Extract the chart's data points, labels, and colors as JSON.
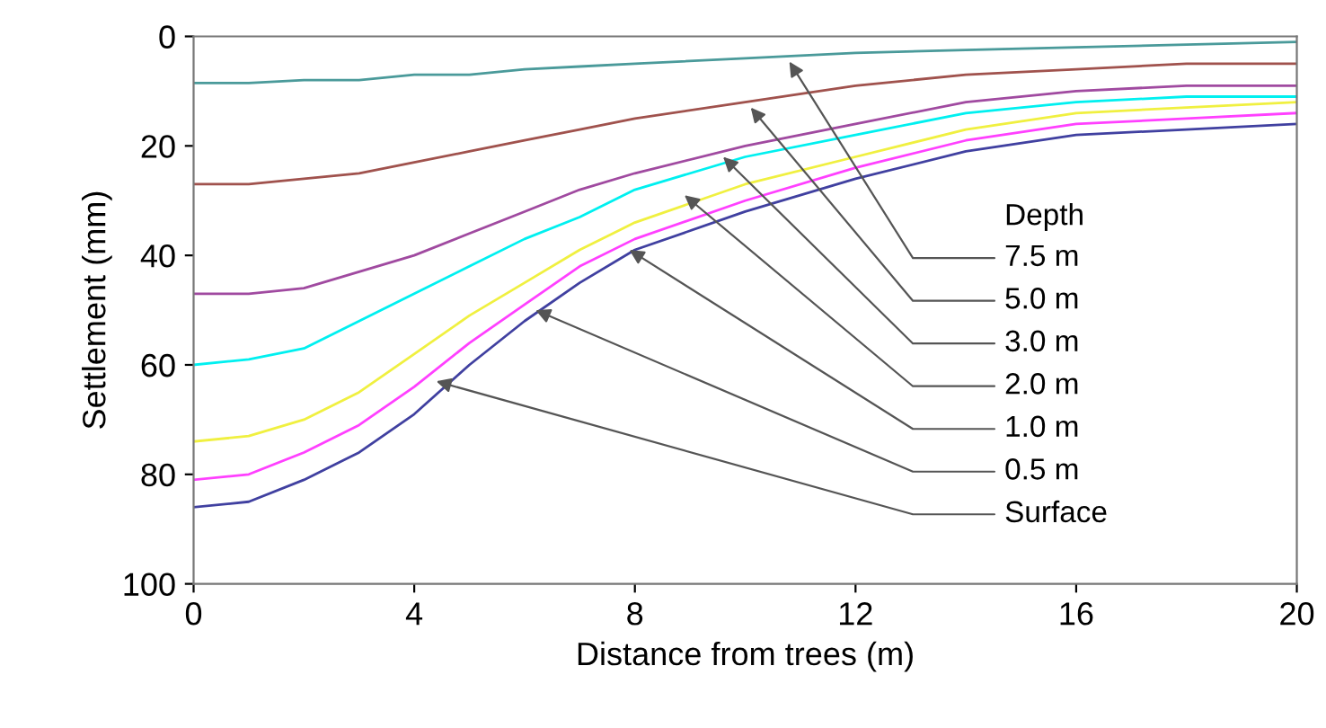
{
  "chart_data": {
    "type": "line",
    "xlabel": "Distance from trees (m)",
    "ylabel": "Settlement (mm)",
    "legend_title": "Depth",
    "x": [
      0,
      1,
      2,
      3,
      4,
      5,
      6,
      7,
      8,
      10,
      12,
      14,
      16,
      18,
      20
    ],
    "xlim": [
      0,
      20
    ],
    "xticks": [
      0,
      4,
      8,
      12,
      16,
      20
    ],
    "ylim": [
      100,
      0
    ],
    "yticks": [
      0,
      20,
      40,
      60,
      80,
      100
    ],
    "grid": false,
    "series": [
      {
        "color": "#4a9a9a",
        "values": [
          8.5,
          8.5,
          8,
          8,
          7,
          7,
          6,
          5.5,
          5,
          4,
          3,
          2.5,
          2,
          1.5,
          1
        ]
      },
      {
        "color": "#a0524d",
        "values": [
          27,
          27,
          26,
          25,
          23,
          21,
          19,
          17,
          15,
          12,
          9,
          7,
          6,
          5,
          5
        ]
      },
      {
        "color": "#a04aa0",
        "values": [
          47,
          47,
          46,
          43,
          40,
          36,
          32,
          28,
          25,
          20,
          16,
          12,
          10,
          9,
          9
        ]
      },
      {
        "color": "#00f0f0",
        "values": [
          60,
          59,
          57,
          52,
          47,
          42,
          37,
          33,
          28,
          22,
          18,
          14,
          12,
          11,
          11
        ]
      },
      {
        "color": "#f0f040",
        "values": [
          74,
          73,
          70,
          65,
          58,
          51,
          45,
          39,
          34,
          27,
          22,
          17,
          14,
          13,
          12
        ]
      },
      {
        "color": "#ff40ff",
        "values": [
          81,
          80,
          76,
          71,
          64,
          56,
          49,
          42,
          37,
          30,
          24,
          19,
          16,
          15,
          14
        ]
      },
      {
        "color": "#4040a0",
        "values": [
          86,
          85,
          81,
          76,
          69,
          60,
          52,
          45,
          39,
          32,
          26,
          21,
          18,
          17,
          16
        ]
      }
    ],
    "annotations": [
      {
        "text": "7.5 m",
        "x": 10.8,
        "y": 4.6
      },
      {
        "text": "5.0 m",
        "x": 10.1,
        "y": 13
      },
      {
        "text": "3.0 m",
        "x": 9.6,
        "y": 22
      },
      {
        "text": "2.0 m",
        "x": 8.9,
        "y": 29
      },
      {
        "text": "1.0 m",
        "x": 7.9,
        "y": 39
      },
      {
        "text": "0.5 m",
        "x": 6.2,
        "y": 50
      },
      {
        "text": "Surface",
        "x": 4.4,
        "y": 63
      }
    ]
  }
}
